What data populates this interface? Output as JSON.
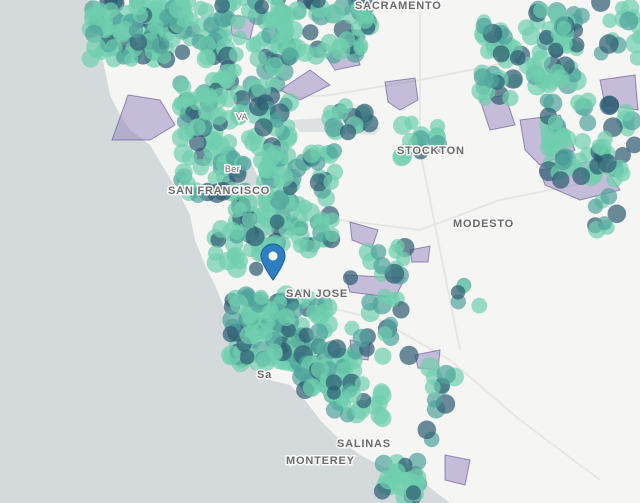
{
  "map": {
    "cities": [
      {
        "name": "SAN FRANCISCO"
      },
      {
        "name": "SAN JOSE"
      },
      {
        "name": "STOCKTON"
      },
      {
        "name": "MODESTO"
      },
      {
        "name": "SALINAS"
      },
      {
        "name": "MONTEREY"
      },
      {
        "name": "SACRAMENTO"
      },
      {
        "name": "VA"
      },
      {
        "name": "Ber"
      },
      {
        "name": "Sa"
      }
    ],
    "marker": {
      "icon": "map-pin-icon",
      "color": "#2d7fc1"
    },
    "colors": {
      "water": "#d4dadc",
      "land": "#f5f5f3",
      "point_light": "#6fcfae",
      "point_mid": "#4fa39b",
      "point_dark": "#2e5b72",
      "polygon_fill": "#8a78b8"
    }
  }
}
